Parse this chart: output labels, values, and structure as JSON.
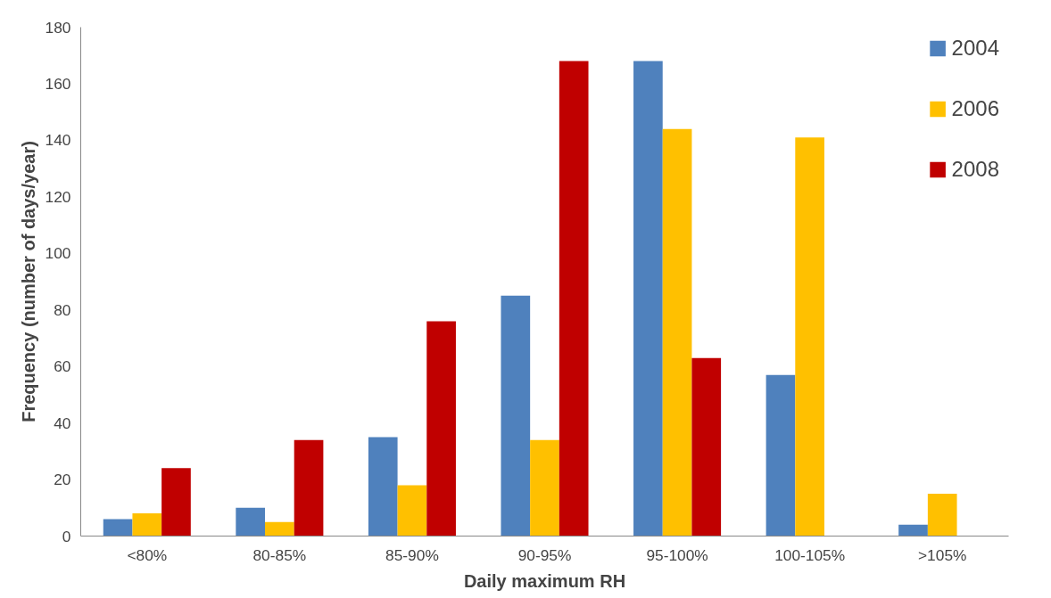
{
  "chart_data": {
    "type": "bar",
    "xlabel": "Daily maximum RH",
    "ylabel": "Frequency (number of days/year)",
    "categories": [
      "<80%",
      "80-85%",
      "85-90%",
      "90-95%",
      "95-100%",
      "100-105%",
      ">105%"
    ],
    "series": [
      {
        "name": "2004",
        "color": "#4f81bd",
        "values": [
          6,
          10,
          35,
          85,
          168,
          57,
          4
        ]
      },
      {
        "name": "2006",
        "color": "#ffc000",
        "values": [
          8,
          5,
          18,
          34,
          144,
          141,
          15
        ]
      },
      {
        "name": "2008",
        "color": "#c00000",
        "values": [
          24,
          34,
          76,
          168,
          63,
          0,
          0
        ]
      }
    ],
    "ylim": [
      0,
      180
    ],
    "yticks": [
      0,
      20,
      40,
      60,
      80,
      100,
      120,
      140,
      160,
      180
    ],
    "grid": false,
    "legend": "top right"
  }
}
